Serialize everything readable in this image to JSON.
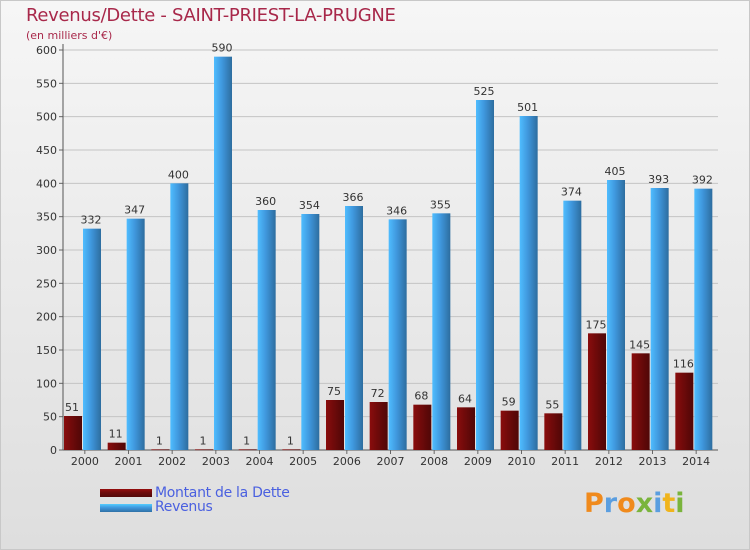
{
  "title": "Revenus/Dette - SAINT-PRIEST-LA-PRUGNE",
  "subtitle": "(en milliers d'€)",
  "colors": {
    "dette": "#6e0a0a",
    "revenus": "#3f97dd",
    "title": "#a8284a",
    "legend_text": "#4a60e0"
  },
  "legend": [
    {
      "label": "Montant de la Dette",
      "color": "#6e0a0a"
    },
    {
      "label": "Revenus",
      "color": "#3f97dd"
    }
  ],
  "logo": {
    "text": "Proxiti"
  },
  "chart_data": {
    "type": "bar",
    "title": "Revenus/Dette - SAINT-PRIEST-LA-PRUGNE",
    "ylabel": "(en milliers d'€)",
    "ylim": [
      0,
      600
    ],
    "yticks": [
      0,
      50,
      100,
      150,
      200,
      250,
      300,
      350,
      400,
      450,
      500,
      550,
      600
    ],
    "grid": true,
    "legend_position": "bottom-left",
    "categories": [
      "2000",
      "2001",
      "2002",
      "2003",
      "2004",
      "2005",
      "2006",
      "2007",
      "2008",
      "2009",
      "2010",
      "2011",
      "2012",
      "2013",
      "2014"
    ],
    "series": [
      {
        "name": "Montant de la Dette",
        "values": [
          51,
          11,
          1,
          1,
          1,
          1,
          75,
          72,
          68,
          64,
          59,
          55,
          175,
          145,
          116
        ]
      },
      {
        "name": "Revenus",
        "values": [
          332,
          347,
          400,
          590,
          360,
          354,
          366,
          346,
          355,
          525,
          501,
          374,
          405,
          393,
          392
        ]
      }
    ]
  }
}
